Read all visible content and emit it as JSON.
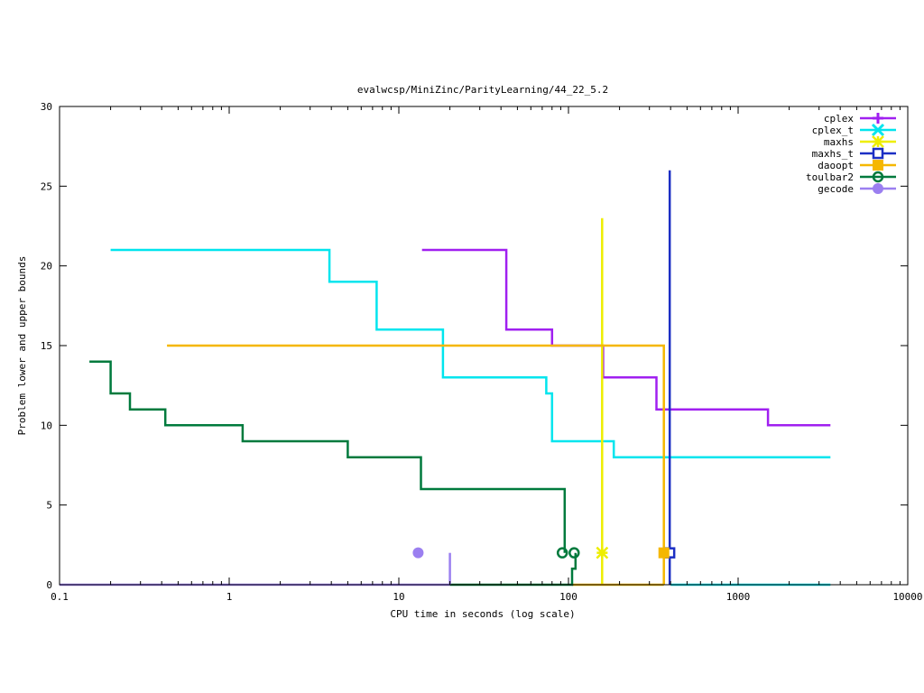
{
  "chart_data": {
    "type": "line",
    "title": "evalwcsp/MiniZinc/ParityLearning/44_22_5.2",
    "xlabel": "CPU time in seconds (log scale)",
    "ylabel": "Problem lower and upper bounds",
    "xscale": "log",
    "xlim": [
      0.1,
      10000
    ],
    "ylim": [
      0,
      30
    ],
    "xticks": [
      {
        "value": 0.1,
        "label": "0.1"
      },
      {
        "value": 1,
        "label": "1"
      },
      {
        "value": 10,
        "label": "10"
      },
      {
        "value": 100,
        "label": "100"
      },
      {
        "value": 1000,
        "label": "1000"
      },
      {
        "value": 10000,
        "label": "10000"
      }
    ],
    "yticks": [
      {
        "value": 0,
        "label": "0"
      },
      {
        "value": 5,
        "label": "5"
      },
      {
        "value": 10,
        "label": "10"
      },
      {
        "value": 15,
        "label": "15"
      },
      {
        "value": 20,
        "label": "20"
      },
      {
        "value": 25,
        "label": "25"
      },
      {
        "value": 30,
        "label": "30"
      }
    ],
    "grid": false,
    "legend_position": "top-right",
    "series": [
      {
        "name": "cplex",
        "color": "#a020f0",
        "marker": "plus",
        "x": [
          13.7,
          43,
          43,
          80,
          80,
          160,
          160,
          330,
          330,
          1500,
          1500,
          3500
        ],
        "y": [
          21,
          21,
          16,
          16,
          15,
          15,
          13,
          13,
          11,
          11,
          10,
          10
        ],
        "marker_points": []
      },
      {
        "name": "cplex_t",
        "color": "#00e5ee",
        "marker": "cross",
        "x": [
          0.2,
          3.9,
          3.9,
          7.4,
          7.4,
          18.2,
          18.2,
          74,
          74,
          80,
          80,
          185,
          185,
          3500
        ],
        "y": [
          21,
          21,
          19,
          19,
          16,
          16,
          13,
          13,
          12,
          12,
          9,
          9,
          8,
          8
        ],
        "lower_x": [
          400,
          3500
        ],
        "lower_y": [
          0,
          0
        ],
        "marker_points": []
      },
      {
        "name": "maxhs",
        "color": "#eeee00",
        "marker": "star",
        "x": [
          158,
          158
        ],
        "y": [
          0,
          23
        ],
        "marker_points": [
          {
            "x": 158,
            "y": 2
          }
        ]
      },
      {
        "name": "maxhs_t",
        "color": "#1c2fc4",
        "marker": "open-square",
        "x": [
          395,
          395
        ],
        "y": [
          0,
          26
        ],
        "marker_points": [
          {
            "x": 395,
            "y": 2
          }
        ]
      },
      {
        "name": "daoopt",
        "color": "#f5b700",
        "marker": "filled-square",
        "x": [
          0.43,
          365,
          365
        ],
        "y": [
          15,
          15,
          0
        ],
        "lower_x": [
          105,
          365
        ],
        "lower_y": [
          0,
          0
        ],
        "marker_points": [
          {
            "x": 365,
            "y": 2
          }
        ]
      },
      {
        "name": "toulbar2",
        "color": "#007a3d",
        "marker": "open-circle",
        "x": [
          0.15,
          0.2,
          0.2,
          0.26,
          0.26,
          0.42,
          0.42,
          1.2,
          1.2,
          5,
          5,
          13.5,
          13.5,
          95,
          95
        ],
        "y": [
          14,
          14,
          12,
          12,
          11,
          11,
          10,
          10,
          9,
          9,
          8,
          8,
          6,
          6,
          2
        ],
        "lower_x": [
          20,
          105,
          105,
          110,
          110
        ],
        "lower_y": [
          0,
          0,
          1,
          1,
          2
        ],
        "marker_points": [
          {
            "x": 92,
            "y": 2
          },
          {
            "x": 108,
            "y": 2
          }
        ]
      },
      {
        "name": "gecode",
        "color": "#9b7ff0",
        "marker": "filled-circle",
        "x": [
          20,
          20
        ],
        "y": [
          0,
          2
        ],
        "lower_x": [
          0.1,
          20
        ],
        "lower_y": [
          0,
          0
        ],
        "marker_points": [
          {
            "x": 13,
            "y": 2
          }
        ]
      }
    ]
  }
}
